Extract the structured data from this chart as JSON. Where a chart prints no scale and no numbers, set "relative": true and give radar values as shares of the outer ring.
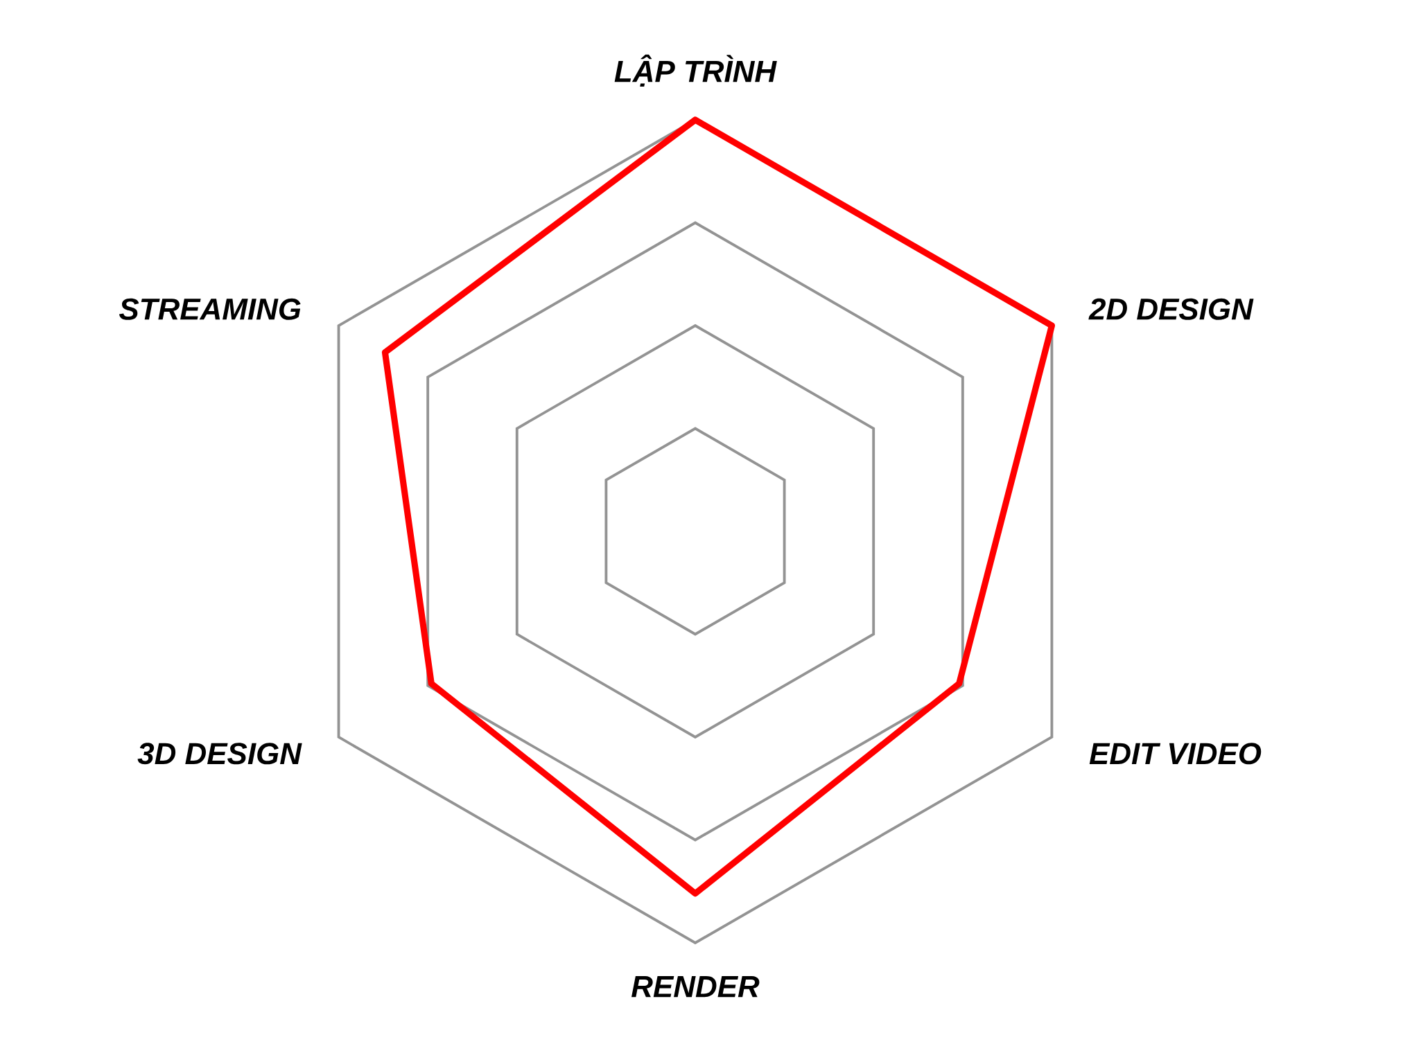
{
  "chart_data": {
    "type": "radar",
    "relative": true,
    "grid": true,
    "categories": [
      "LẬP TRÌNH",
      "2D DESIGN",
      "EDIT VIDEO",
      "RENDER",
      "3D DESIGN",
      "STREAMING"
    ],
    "series": [
      {
        "color": "#ff0000",
        "values": [
          1,
          1,
          0.74,
          0.88,
          0.74,
          0.87
        ]
      }
    ]
  }
}
